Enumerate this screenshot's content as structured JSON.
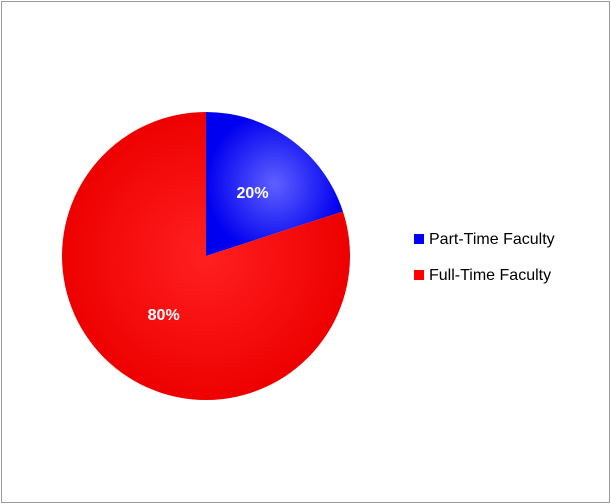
{
  "chart_data": {
    "type": "pie",
    "title": "",
    "slices": [
      {
        "name": "Part-Time Faculty",
        "value": 20,
        "label": "20%",
        "color": "#0000ff"
      },
      {
        "name": "Full-Time Faculty",
        "value": 80,
        "label": "80%",
        "color": "#ff0000"
      }
    ],
    "legend_position": "right",
    "legend": [
      "Part-Time Faculty",
      "Full-Time Faculty"
    ]
  }
}
